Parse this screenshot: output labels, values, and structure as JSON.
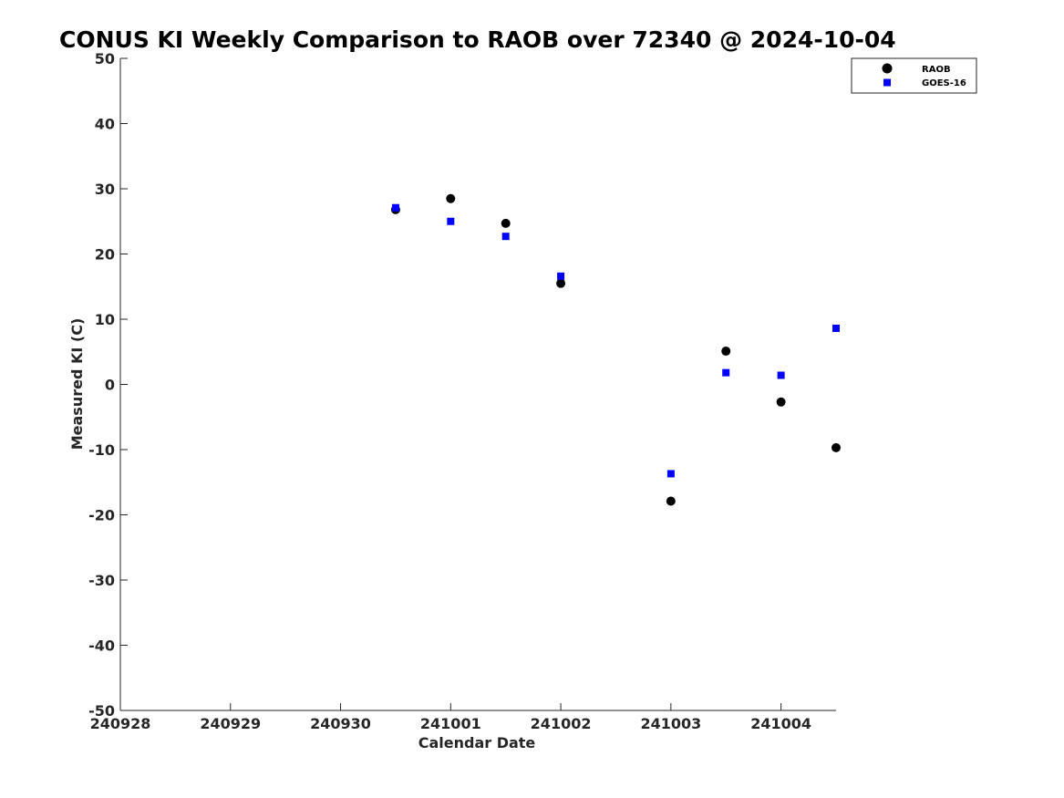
{
  "chart_data": {
    "type": "scatter",
    "title": "CONUS KI Weekly Comparison to RAOB over 72340 @ 2024-10-04",
    "xlabel": "Calendar Date",
    "ylabel": "Measured KI (C)",
    "x_tick_labels": [
      "240928",
      "240929",
      "240930",
      "241001",
      "241002",
      "241003",
      "241004"
    ],
    "x_tick_days": [
      0,
      1,
      2,
      3,
      4,
      5,
      6
    ],
    "xlim_days": [
      0,
      6.5
    ],
    "ylim": [
      -50,
      50
    ],
    "y_ticks": [
      -50,
      -40,
      -30,
      -20,
      -10,
      0,
      10,
      20,
      30,
      40,
      50
    ],
    "legend_position": "top-right",
    "grid": false,
    "series": [
      {
        "name": "RAOB",
        "marker": "circle",
        "color": "#000000",
        "x": [
          2.5,
          3.0,
          3.5,
          4.0,
          5.0,
          5.5,
          6.0,
          6.5
        ],
        "y": [
          26.8,
          28.5,
          24.7,
          15.5,
          -17.9,
          5.1,
          -2.7,
          -9.7
        ]
      },
      {
        "name": "GOES-16",
        "marker": "square",
        "color": "#0000ff",
        "x": [
          2.5,
          3.0,
          3.5,
          4.0,
          5.0,
          5.5,
          6.0,
          6.5
        ],
        "y": [
          27.1,
          25.0,
          22.7,
          16.6,
          -13.7,
          1.8,
          1.4,
          8.6
        ]
      }
    ]
  }
}
